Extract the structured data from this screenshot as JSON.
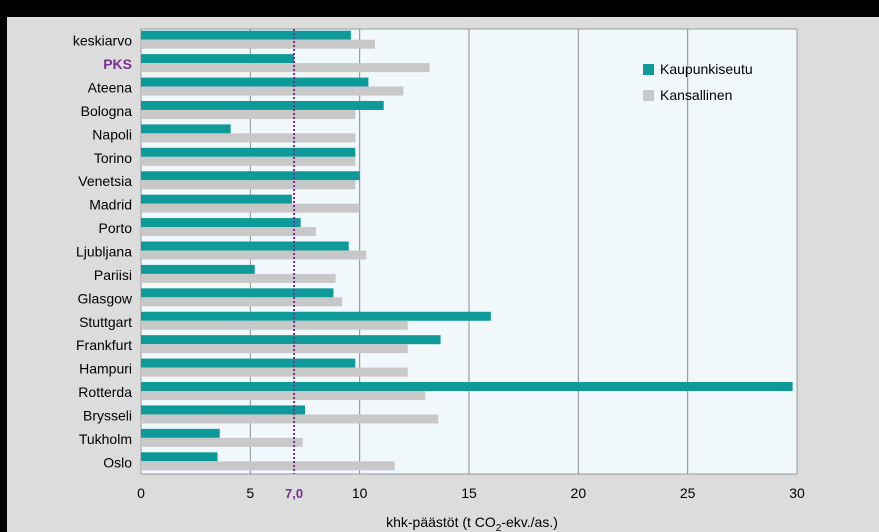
{
  "chart_data": {
    "type": "bar",
    "orientation": "horizontal",
    "categories": [
      "keskiarvo",
      "PKS",
      "Ateena",
      "Bologna",
      "Napoli",
      "Torino",
      "Venetsia",
      "Madrid",
      "Porto",
      "Ljubljana",
      "Pariisi",
      "Glasgow",
      "Stuttgart",
      "Frankfurt",
      "Hampuri",
      "Rotterda",
      "Brysseli",
      "Tukholm",
      "Oslo"
    ],
    "highlight_category": "PKS",
    "series": [
      {
        "name": "Kaupunkiseutu",
        "color": "#0f9a9a",
        "values": [
          9.6,
          7.0,
          10.4,
          11.1,
          4.1,
          9.8,
          10.0,
          6.9,
          7.3,
          9.5,
          5.2,
          8.8,
          16.0,
          13.7,
          9.8,
          29.8,
          7.5,
          3.6,
          3.5
        ]
      },
      {
        "name": "Kansallinen",
        "color": "#c8c8c8",
        "values": [
          10.7,
          13.2,
          12.0,
          9.8,
          9.8,
          9.8,
          9.8,
          10.0,
          8.0,
          10.3,
          8.9,
          9.2,
          12.2,
          12.2,
          12.2,
          13.0,
          13.6,
          7.4,
          11.6
        ]
      }
    ],
    "xlim": [
      0,
      30
    ],
    "xticks": [
      0,
      5,
      10,
      15,
      20,
      25,
      30
    ],
    "reference_line": {
      "value": 7.0,
      "label": "7,0",
      "color": "#7a2e8e"
    },
    "xlabel_parts": [
      "khk-päästöt (t CO",
      "2",
      "-ekv./as.)"
    ],
    "legend_position": "top-right",
    "grid": "vertical"
  }
}
